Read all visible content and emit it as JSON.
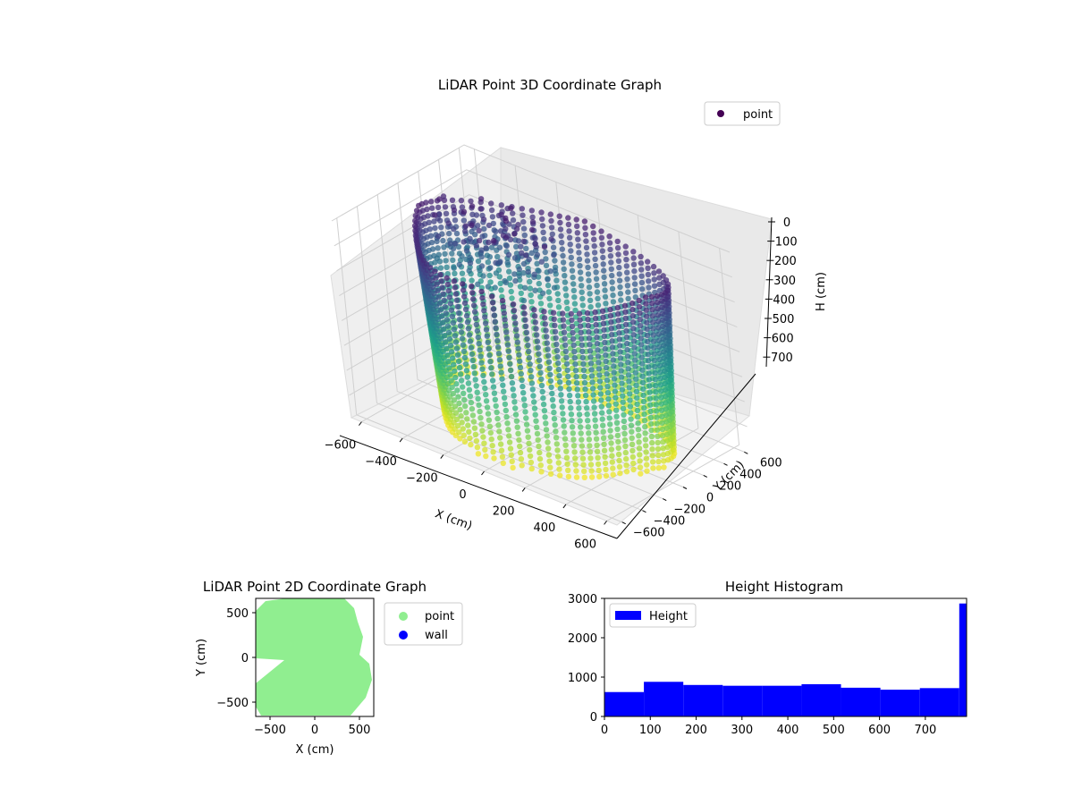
{
  "charts": {
    "scatter3d": {
      "title": "LiDAR Point 3D Coordinate Graph",
      "xlabel": "X (cm)",
      "ylabel": "Y (cm)",
      "zlabel": "H (cm)",
      "legend": "point",
      "xticks": [
        "−600",
        "−400",
        "−200",
        "0",
        "200",
        "400",
        "600"
      ],
      "yticks": [
        "−600",
        "−400",
        "−200",
        "0",
        "200",
        "400",
        "600"
      ],
      "zticks": [
        "0",
        "100",
        "200",
        "300",
        "400",
        "500",
        "600",
        "700"
      ]
    },
    "scatter2d": {
      "title": "LiDAR Point 2D Coordinate Graph",
      "xlabel": "X (cm)",
      "ylabel": "Y (cm)",
      "legend": [
        "point",
        "wall"
      ],
      "xticks": [
        "−500",
        "0",
        "500"
      ],
      "yticks": [
        "500",
        "0",
        "−500"
      ]
    },
    "hist": {
      "title": "Height Histogram",
      "legend": "Height",
      "xticks": [
        "0",
        "100",
        "200",
        "300",
        "400",
        "500",
        "600",
        "700"
      ],
      "yticks": [
        "0",
        "1000",
        "2000",
        "3000"
      ]
    }
  },
  "chart_data": [
    {
      "type": "scatter",
      "title": "LiDAR Point 3D Coordinate Graph",
      "xlabel": "X (cm)",
      "ylabel": "Y (cm)",
      "zlabel": "H (cm)",
      "xlim": [
        -650,
        650
      ],
      "ylim": [
        -650,
        650
      ],
      "zlim": [
        790,
        0
      ],
      "z_axis_inverted": true,
      "colormap": "viridis",
      "legend_entries": [
        "point"
      ],
      "legend_placement": "top-right",
      "grid": true
    },
    {
      "type": "scatter",
      "title": "LiDAR Point 2D Coordinate Graph",
      "xlabel": "X (cm)",
      "ylabel": "Y (cm)",
      "xlim": [
        -660,
        660
      ],
      "ylim": [
        -660,
        660
      ],
      "series": [
        {
          "name": "point",
          "color": "#90ee90"
        },
        {
          "name": "wall",
          "color": "#0000ff"
        }
      ],
      "legend_placement": "outside-right"
    },
    {
      "type": "bar",
      "title": "Height Histogram",
      "series": [
        {
          "name": "Height",
          "color": "#0000ff"
        }
      ],
      "bin_edges": [
        0,
        86,
        172,
        258,
        344,
        430,
        516,
        602,
        688,
        774,
        860
      ],
      "values": [
        620,
        880,
        800,
        780,
        780,
        820,
        730,
        680,
        720,
        2870
      ],
      "xlim": [
        0,
        790
      ],
      "ylim": [
        0,
        3000
      ],
      "legend_placement": "top-left"
    }
  ]
}
